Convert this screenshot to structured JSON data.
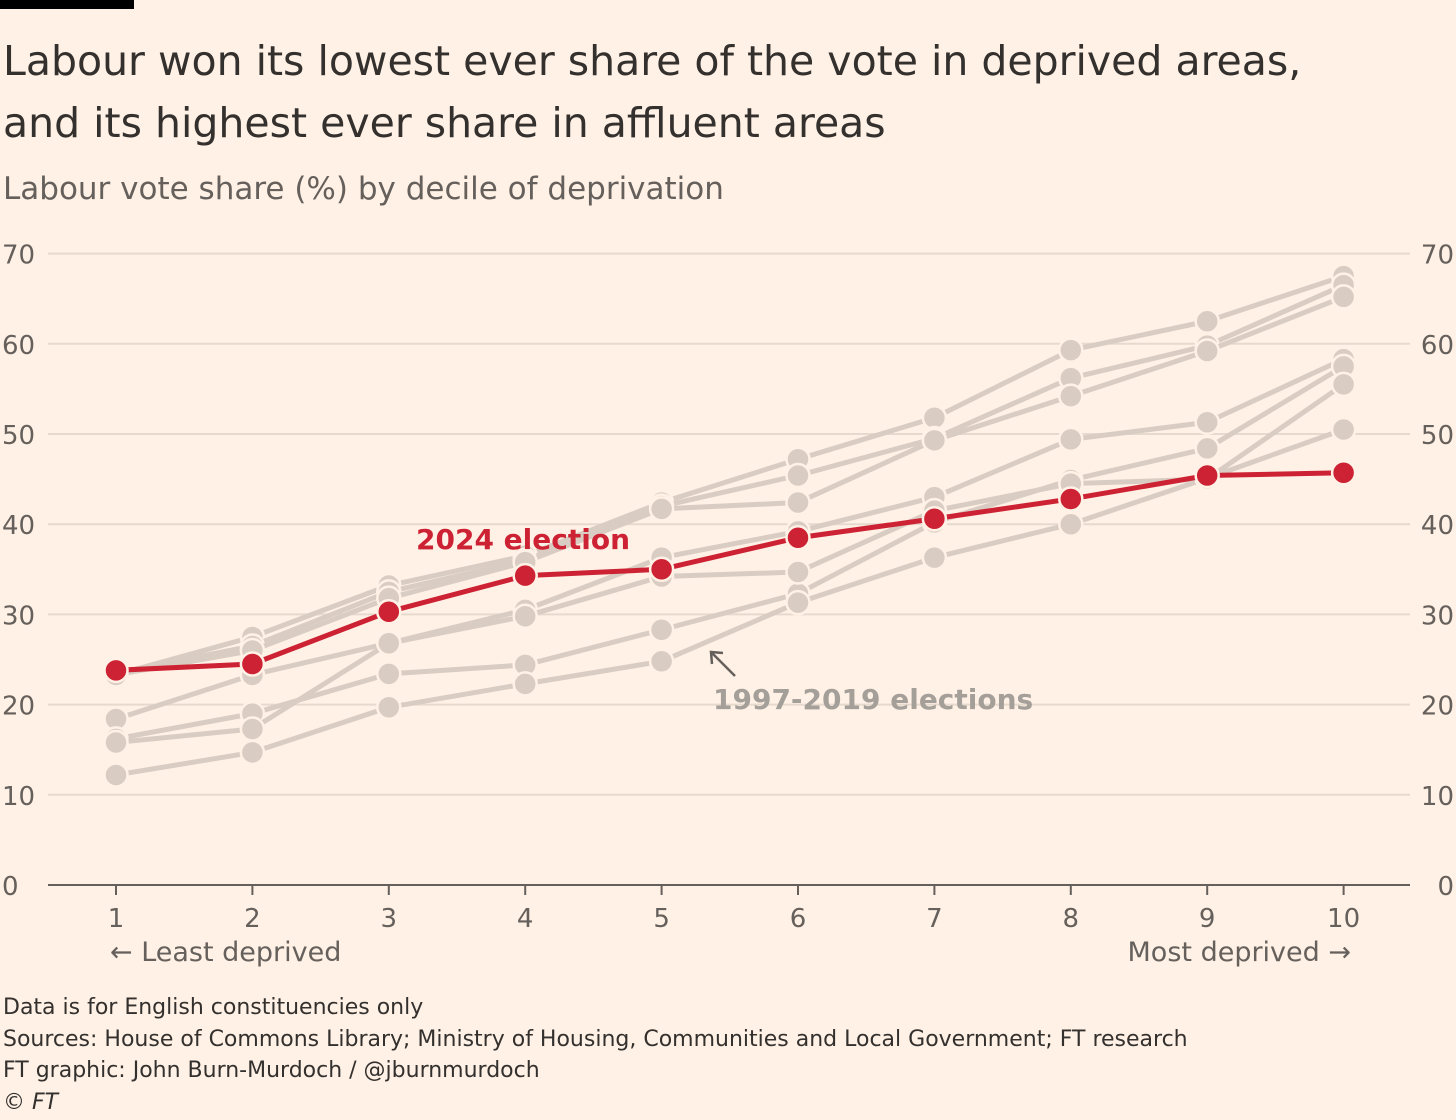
{
  "header": {
    "title_line1": "Labour won its lowest ever share of the vote in deprived areas,",
    "title_line2": "and its highest ever share in affluent areas",
    "subtitle": "Labour vote share (%) by decile of deprivation"
  },
  "footer": {
    "note": "Data is for English constituencies only",
    "sources": "Sources: House of Commons Library; Ministry of Housing, Communities and Local Government; FT research",
    "credit": "FT graphic: John Burn-Murdoch / @jburnmurdoch",
    "copyright": "© FT"
  },
  "colors": {
    "background": "#FFF1E5",
    "highlight": "#CC2233",
    "history": "#D9CCC3",
    "grid": "#E6D9CE",
    "text": "#33302E",
    "muted": "#66605C"
  },
  "chart_data": {
    "type": "line",
    "title": "Labour won its lowest ever share of the vote in deprived areas, and its highest ever share in affluent areas",
    "subtitle": "Labour vote share (%) by decile of deprivation",
    "x": [
      1,
      2,
      3,
      4,
      5,
      6,
      7,
      8,
      9,
      10
    ],
    "xlabel": "",
    "ylabel": "",
    "ylim": [
      0,
      70
    ],
    "yticks": [
      0,
      10,
      20,
      30,
      40,
      50,
      60,
      70
    ],
    "grid": true,
    "x_endpoint_labels": {
      "left": "← Least deprived",
      "right": "Most deprived →"
    },
    "annotations": {
      "highlight": "2024 election",
      "history": "1997-2019 elections"
    },
    "series": [
      {
        "name": "2024 election",
        "highlight": true,
        "values": [
          23.8,
          24.5,
          30.3,
          34.3,
          35.0,
          38.5,
          40.6,
          42.8,
          45.4,
          45.7
        ]
      },
      {
        "highlight": false,
        "values": [
          23.3,
          27.5,
          33.2,
          36.5,
          42.4,
          47.2,
          51.8,
          59.3,
          62.5,
          67.5
        ]
      },
      {
        "highlight": false,
        "values": [
          23.5,
          26.5,
          32.5,
          36.0,
          42.0,
          45.4,
          49.5,
          56.2,
          59.8,
          66.5
        ]
      },
      {
        "highlight": false,
        "values": [
          23.3,
          26.0,
          31.8,
          35.8,
          41.7,
          42.4,
          49.3,
          54.2,
          59.2,
          65.2
        ]
      },
      {
        "highlight": false,
        "values": [
          18.4,
          23.3,
          26.8,
          30.5,
          36.3,
          39.2,
          43.0,
          49.4,
          51.3,
          58.3
        ]
      },
      {
        "highlight": false,
        "values": [
          16.2,
          19.0,
          23.4,
          24.4,
          28.3,
          32.3,
          40.2,
          44.9,
          48.4,
          57.5
        ]
      },
      {
        "highlight": false,
        "values": [
          15.8,
          17.3,
          26.8,
          29.8,
          34.2,
          34.7,
          41.5,
          44.5,
          45.0,
          55.5
        ]
      },
      {
        "highlight": false,
        "values": [
          12.2,
          14.7,
          19.7,
          22.3,
          24.8,
          31.3,
          36.3,
          40.0,
          45.1,
          50.5
        ]
      }
    ]
  }
}
